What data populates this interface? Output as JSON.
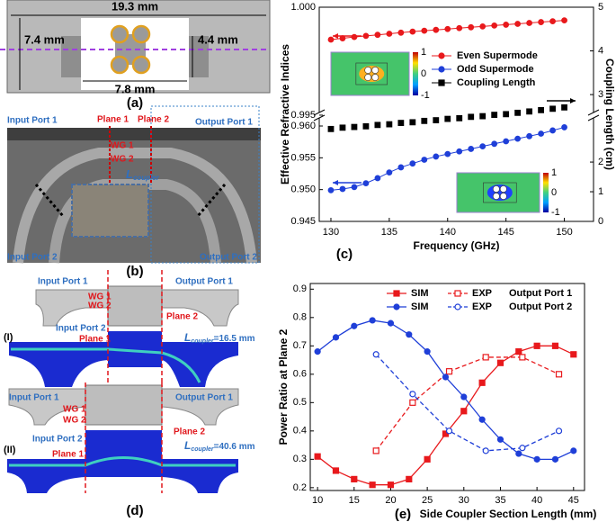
{
  "panel_labels": [
    "(a)",
    "(b)",
    "(c)",
    "(d)",
    "(e)"
  ],
  "diagram_a": {
    "width": "19.3 mm",
    "height_outer": "7.4 mm",
    "height_inner": "4.4 mm",
    "width_inner": "7.8 mm"
  },
  "photo_b": {
    "input_port_1": "Input Port 1",
    "plane_1": "Plane 1",
    "plane_2": "Plane 2",
    "output_port_1": "Output Port 1",
    "wg_1": "WG 1",
    "wg_2": "WG 2",
    "coupler": {
      "main": "L",
      "sub": "coupler"
    },
    "input_port_2": "Input Port 2",
    "output_port_2": "Output Port 2"
  },
  "sim_d": [
    {
      "case": "(I)",
      "input_port_1": "Input Port 1",
      "output_port_1": "Output Port 1",
      "wg_1": "WG 1",
      "wg_2": "WG 2",
      "input_port_2": "Input Port 2",
      "plane_1": "Plane 1",
      "plane_2": "Plane 2",
      "coupler": {
        "main": "L",
        "sub": "coupler",
        "tail": "=16.5 mm"
      }
    },
    {
      "case": "(II)",
      "input_port_1": "Input Port 1",
      "output_port_1": "Output Port 1",
      "wg_1": "WG 1",
      "wg_2": "WG 2",
      "input_port_2": "Input Port 2",
      "plane_1": "Plane 1",
      "plane_2": "Plane 2",
      "coupler": {
        "main": "L",
        "sub": "coupler",
        "tail": "=40.6 mm"
      }
    }
  ],
  "chart_data": [
    {
      "type": "line",
      "xlabel": "Frequency (GHz)",
      "ylabel": "Effective Refractive Indices",
      "y2label": "Coupling Length (cm)",
      "x": [
        130,
        131,
        132,
        133,
        134,
        135,
        136,
        137,
        138,
        139,
        140,
        141,
        142,
        143,
        144,
        145,
        146,
        147,
        148,
        149,
        150
      ],
      "xlim": [
        129,
        152.5
      ],
      "xticks": [
        130,
        135,
        140,
        145,
        150
      ],
      "ylim": [
        0.945,
        1.0
      ],
      "ybreak": [
        0.961,
        0.995
      ],
      "yticks": [
        0.945,
        {
          "value": 0.95,
          "label": "0.950"
        },
        0.955,
        {
          "value": 0.96,
          "label": "0.960"
        },
        0.995,
        {
          "value": 1.0,
          "label": "1.000"
        }
      ],
      "y2lim": [
        0,
        5
      ],
      "y2break": [
        2,
        3
      ],
      "y2ticks": [
        0,
        1,
        2,
        3,
        4,
        5
      ],
      "series": [
        {
          "name": "Even Supermode",
          "color": "#e8191c",
          "marker": "circle",
          "values": [
            0.9985,
            0.99856,
            0.99862,
            0.99867,
            0.99872,
            0.99877,
            0.99882,
            0.99887,
            0.99891,
            0.99895,
            0.99899,
            0.99903,
            0.99907,
            0.99911,
            0.99915,
            0.99919,
            0.99923,
            0.99927,
            0.99931,
            0.99935,
            0.99939
          ]
        },
        {
          "name": "Odd Supermode",
          "color": "#1f3fd8",
          "marker": "circle",
          "values": [
            0.9499,
            0.9501,
            0.9504,
            0.951,
            0.9518,
            0.9527,
            0.9535,
            0.9541,
            0.9547,
            0.9552,
            0.9556,
            0.956,
            0.9564,
            0.9568,
            0.9572,
            0.9576,
            0.958,
            0.9584,
            0.9588,
            0.9593,
            0.9598
          ]
        },
        {
          "name": "Coupling Length",
          "color": "#000000",
          "marker": "square",
          "axis": "y2",
          "values": [
            2.49,
            2.51,
            2.52,
            2.53,
            2.55,
            2.56,
            2.58,
            2.59,
            2.61,
            2.62,
            2.64,
            2.65,
            2.67,
            2.68,
            2.7,
            2.71,
            2.73,
            2.75,
            2.77,
            2.79,
            2.81
          ]
        }
      ],
      "insets": [
        {
          "colorbar_ticks": [
            1,
            0,
            -1
          ]
        },
        {
          "colorbar_ticks": [
            1,
            0,
            -1
          ]
        }
      ]
    },
    {
      "type": "line",
      "xlabel": "Side Coupler Section Length (mm)",
      "ylabel": "Power Ratio at Plane 2",
      "xlim": [
        9,
        46.5
      ],
      "xticks": [
        10,
        15,
        20,
        25,
        30,
        35,
        40,
        45
      ],
      "ylim": [
        0.19,
        0.92
      ],
      "yticks": [
        0.2,
        0.3,
        0.4,
        0.5,
        0.6,
        0.7,
        0.8,
        0.9
      ],
      "series": [
        {
          "name": "SIM",
          "group": "Output Port 1",
          "color": "#e8191c",
          "marker": "square",
          "filled": true,
          "dashed": false,
          "x": [
            10,
            12.5,
            15,
            17.5,
            20,
            22.5,
            25,
            27.5,
            30,
            32.5,
            35,
            37.5,
            40,
            42.5,
            45
          ],
          "values": [
            0.31,
            0.26,
            0.23,
            0.21,
            0.21,
            0.23,
            0.3,
            0.39,
            0.47,
            0.57,
            0.64,
            0.68,
            0.7,
            0.7,
            0.67
          ]
        },
        {
          "name": "EXP",
          "group": "Output Port 1",
          "color": "#e8191c",
          "marker": "square",
          "filled": false,
          "dashed": true,
          "x": [
            18,
            23,
            28,
            33,
            38,
            43
          ],
          "values": [
            0.33,
            0.5,
            0.61,
            0.66,
            0.66,
            0.6
          ]
        },
        {
          "name": "SIM",
          "group": "Output Port 2",
          "color": "#1f3fd8",
          "marker": "circle",
          "filled": true,
          "dashed": false,
          "x": [
            10,
            12.5,
            15,
            17.5,
            20,
            22.5,
            25,
            27.5,
            30,
            32.5,
            35,
            37.5,
            40,
            42.5,
            45
          ],
          "values": [
            0.68,
            0.73,
            0.77,
            0.79,
            0.78,
            0.74,
            0.68,
            0.59,
            0.52,
            0.44,
            0.37,
            0.32,
            0.3,
            0.3,
            0.33
          ]
        },
        {
          "name": "EXP",
          "group": "Output Port 2",
          "color": "#1f3fd8",
          "marker": "circle",
          "filled": false,
          "dashed": true,
          "x": [
            18,
            23,
            28,
            33,
            38,
            43
          ],
          "values": [
            0.67,
            0.53,
            0.4,
            0.33,
            0.34,
            0.4
          ]
        }
      ]
    }
  ]
}
